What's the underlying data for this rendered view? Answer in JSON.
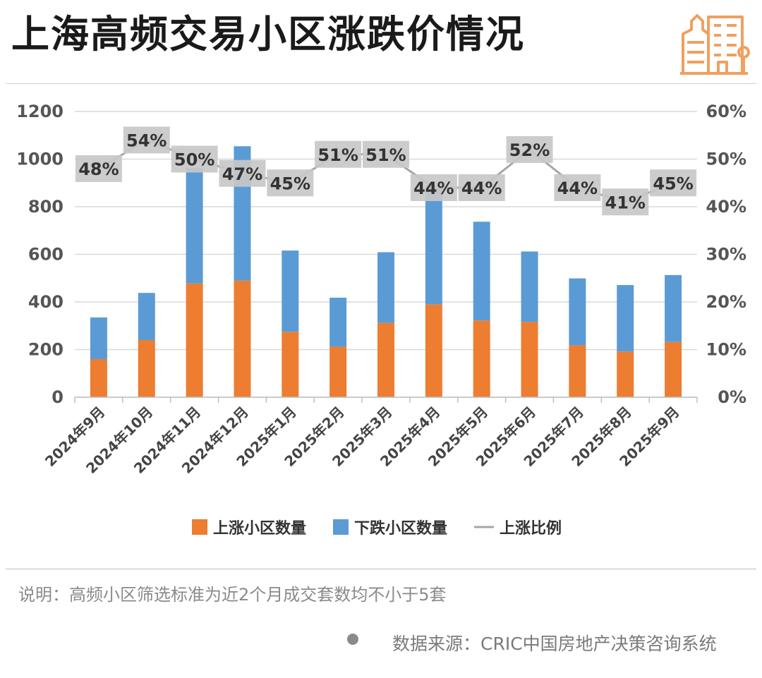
{
  "header": {
    "title": "上海高频交易小区涨跌价情况"
  },
  "chart_data": {
    "type": "bar",
    "stacked": true,
    "categories": [
      "2024年9月",
      "2024年10月",
      "2024年11月",
      "2024年12月",
      "2025年1月",
      "2025年2月",
      "2025年3月",
      "2025年4月",
      "2025年5月",
      "2025年6月",
      "2025年7月",
      "2025年8月",
      "2025年9月"
    ],
    "series": [
      {
        "name": "上涨小区数量",
        "type": "bar",
        "axis": "left",
        "color": "#ED7D31",
        "values": [
          160,
          240,
          478,
          490,
          275,
          212,
          312,
          390,
          322,
          316,
          218,
          192,
          232
        ]
      },
      {
        "name": "下跌小区数量",
        "type": "bar",
        "axis": "left",
        "color": "#5B9BD5",
        "values": [
          175,
          198,
          486,
          564,
          341,
          206,
          297,
          498,
          415,
          296,
          281,
          279,
          281
        ]
      },
      {
        "name": "上涨比例",
        "type": "line",
        "axis": "right",
        "color": "#A6A6A6",
        "values": [
          48,
          54,
          50,
          47,
          45,
          51,
          51,
          44,
          44,
          52,
          44,
          41,
          45
        ],
        "labels": [
          "48%",
          "54%",
          "50%",
          "47%",
          "45%",
          "51%",
          "51%",
          "44%",
          "44%",
          "52%",
          "44%",
          "41%",
          "45%"
        ]
      }
    ],
    "y_left": {
      "min": 0,
      "max": 1200,
      "step": 200,
      "ticks": [
        "0",
        "200",
        "400",
        "600",
        "800",
        "1000",
        "1200"
      ]
    },
    "y_right": {
      "min": 0,
      "max": 60,
      "step": 10,
      "ticks": [
        "0%",
        "10%",
        "20%",
        "30%",
        "40%",
        "50%",
        "60%"
      ]
    },
    "legend": {
      "position": "bottom",
      "items": [
        "上涨小区数量",
        "下跌小区数量",
        "上涨比例"
      ]
    },
    "title": "上海高频交易小区涨跌价情况"
  },
  "footer": {
    "note": "说明：高频小区筛选标准为近2个月成交套数均不小于5套",
    "source": "数据来源：CRIC中国房地产决策咨询系统"
  },
  "colors": {
    "up": "#ED7D31",
    "down": "#5B9BD5",
    "ratio": "#A6A6A6",
    "logo": "#F0A060"
  }
}
